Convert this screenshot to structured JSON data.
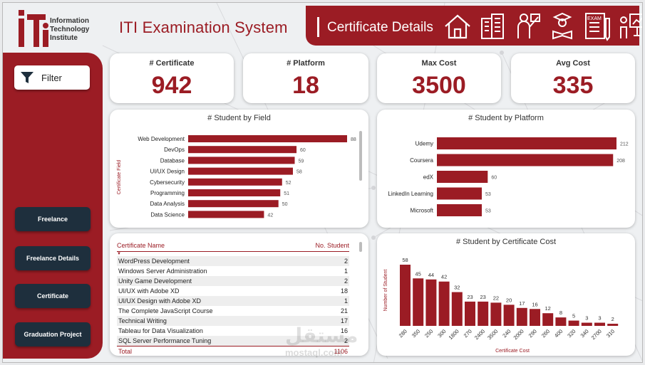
{
  "header": {
    "logo_lines": [
      "Information",
      "Technology",
      "Institute"
    ],
    "app_title": "ITI Examination System",
    "page_title": "Certificate Details",
    "exam_badge": "EXAM",
    "banner_icons": [
      "home-icon",
      "building-icon",
      "instructor-icon",
      "student-icon",
      "exam-icon",
      "presentation-icon"
    ]
  },
  "sidebar": {
    "filter_label": "Filter",
    "nav": [
      "Freelance",
      "Freelance Details",
      "Certificate",
      "Graduation Project"
    ]
  },
  "kpis": [
    {
      "label": "# Certificate",
      "value": "942"
    },
    {
      "label": "# Platform",
      "value": "18"
    },
    {
      "label": "Max Cost",
      "value": "3500"
    },
    {
      "label": "Avg Cost",
      "value": "335"
    }
  ],
  "colors": {
    "accent": "#9b1c24",
    "nav": "#1e2f3d",
    "bar": "#9b1c24"
  },
  "chart_data": [
    {
      "type": "bar",
      "orientation": "horizontal",
      "title": "# Student by Field",
      "ylabel": "Certificate Field",
      "categories": [
        "Web Development",
        "DevOps",
        "Database",
        "UI/UX Design",
        "Cybersecurity",
        "Programming",
        "Data Analysis",
        "Data Science"
      ],
      "values": [
        88,
        60,
        59,
        58,
        52,
        51,
        50,
        42
      ],
      "xlim": [
        0,
        88
      ]
    },
    {
      "type": "bar",
      "orientation": "horizontal",
      "title": "# Student by Platform",
      "categories": [
        "Udemy",
        "Coursera",
        "edX",
        "LinkedIn Learning",
        "Microsoft"
      ],
      "values": [
        212,
        208,
        60,
        53,
        53
      ],
      "xlim": [
        0,
        212
      ]
    },
    {
      "type": "bar",
      "orientation": "vertical",
      "title": "# Student by Certificate Cost",
      "xlabel": "Certificate Cost",
      "ylabel": "Number of Student",
      "categories": [
        "280",
        "350",
        "250",
        "300",
        "1800",
        "270",
        "2400",
        "3500",
        "240",
        "2000",
        "290",
        "260",
        "400",
        "320",
        "340",
        "2700",
        "310"
      ],
      "values": [
        58,
        45,
        44,
        42,
        32,
        23,
        23,
        22,
        20,
        17,
        16,
        12,
        8,
        5,
        3,
        3,
        2
      ],
      "ylim": [
        0,
        58
      ]
    }
  ],
  "table": {
    "col_name": "Certificate Name",
    "col_count": "No. Student",
    "sort_glyph": "▼",
    "rows": [
      {
        "name": "WordPress Development",
        "count": "2"
      },
      {
        "name": "Windows Server Administration",
        "count": "1"
      },
      {
        "name": "Unity Game Development",
        "count": "2"
      },
      {
        "name": "UI/UX with Adobe XD",
        "count": "18"
      },
      {
        "name": "UI/UX Design with Adobe XD",
        "count": "1"
      },
      {
        "name": "The Complete JavaScript Course",
        "count": "21"
      },
      {
        "name": "Technical Writing",
        "count": "17"
      },
      {
        "name": "Tableau for Data Visualization",
        "count": "16"
      },
      {
        "name": "SQL Server Performance Tuning",
        "count": "2"
      }
    ],
    "total_label": "Total",
    "total_value": "1106"
  },
  "watermark": {
    "arabic": "مستقل",
    "latin": "mostaql.com"
  }
}
